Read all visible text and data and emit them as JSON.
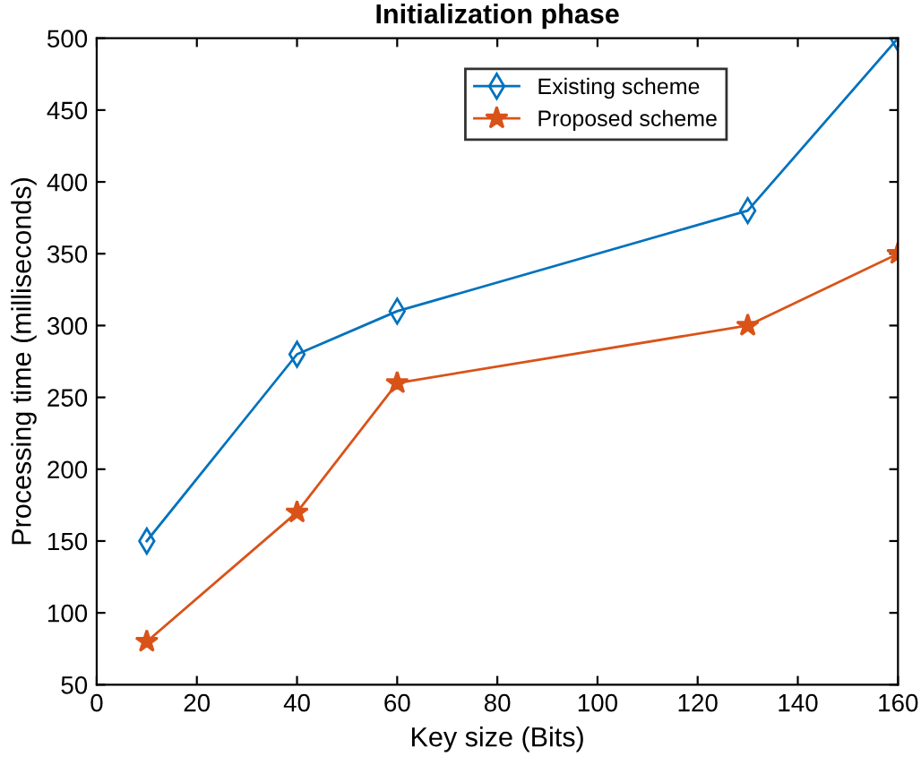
{
  "chart_data": {
    "type": "line",
    "title": "Initialization phase",
    "xlabel": "Key size (Bits)",
    "ylabel": "Processing time (milliseconds)",
    "x": [
      10,
      40,
      60,
      130,
      160
    ],
    "series": [
      {
        "name": "Existing scheme",
        "color": "#0072bd",
        "marker": "diamond",
        "values": [
          150,
          280,
          310,
          380,
          500
        ]
      },
      {
        "name": "Proposed scheme",
        "color": "#d95319",
        "marker": "star",
        "values": [
          80,
          170,
          260,
          300,
          350
        ]
      }
    ],
    "xlim": [
      0,
      160
    ],
    "xticks": [
      0,
      20,
      40,
      60,
      80,
      100,
      120,
      140,
      160
    ],
    "ylim": [
      50,
      500
    ],
    "yticks": [
      50,
      100,
      150,
      200,
      250,
      300,
      350,
      400,
      450,
      500
    ],
    "legend": "top right",
    "line_style": "solid",
    "grid": false
  }
}
